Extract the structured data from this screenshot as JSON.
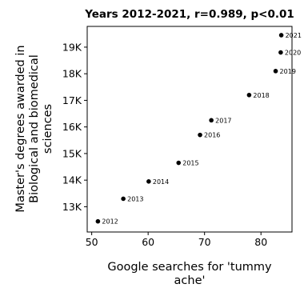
{
  "chart_data": {
    "type": "scatter",
    "title": "Years 2012-2021, r=0.989, p<0.01",
    "xlabel": "Google searches for 'tummy ache'",
    "ylabel": "Master's degrees awarded in Biological and biomedical sciences",
    "xlim": [
      49.2,
      85.5
    ],
    "ylim": [
      12050,
      19780
    ],
    "xticks": [
      50,
      60,
      70,
      80
    ],
    "xtick_labels": [
      "50",
      "60",
      "70",
      "80"
    ],
    "yticks": [
      13000,
      14000,
      15000,
      16000,
      17000,
      18000,
      19000
    ],
    "ytick_labels": [
      "13K",
      "14K",
      "15K",
      "16K",
      "17K",
      "18K",
      "19K"
    ],
    "grid": false,
    "marker_color": "#000000",
    "points": [
      {
        "x": 51.1,
        "y": 12450,
        "label": "2012"
      },
      {
        "x": 55.6,
        "y": 13300,
        "label": "2013"
      },
      {
        "x": 60.1,
        "y": 13950,
        "label": "2014"
      },
      {
        "x": 65.4,
        "y": 14650,
        "label": "2015"
      },
      {
        "x": 69.2,
        "y": 15700,
        "label": "2016"
      },
      {
        "x": 71.2,
        "y": 16250,
        "label": "2017"
      },
      {
        "x": 77.9,
        "y": 17200,
        "label": "2018"
      },
      {
        "x": 82.6,
        "y": 18100,
        "label": "2019"
      },
      {
        "x": 83.5,
        "y": 18800,
        "label": "2020"
      },
      {
        "x": 83.6,
        "y": 19450,
        "label": "2021"
      }
    ]
  }
}
